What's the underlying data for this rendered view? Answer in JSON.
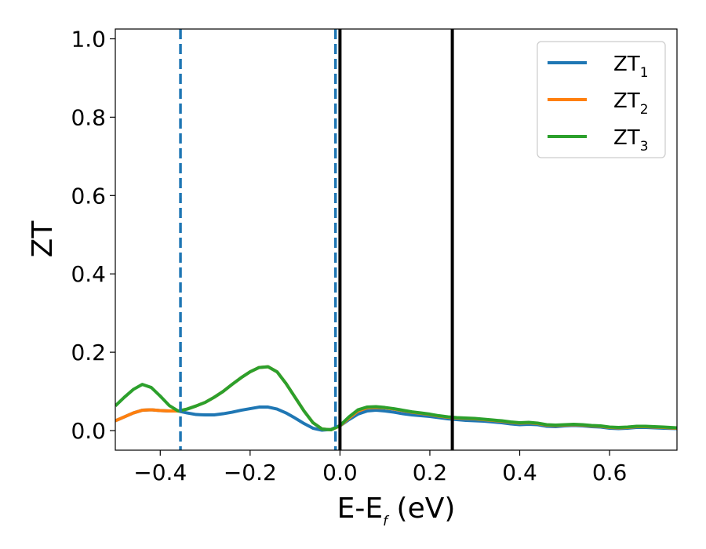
{
  "chart_data": {
    "type": "line",
    "title": "",
    "xlabel": {
      "main": "E-E",
      "sub": "f",
      "tail": " (eV)"
    },
    "ylabel": "ZT",
    "xlim": [
      -0.5,
      0.75
    ],
    "ylim": [
      -0.05,
      1.025
    ],
    "xticks": [
      -0.4,
      -0.2,
      0.0,
      0.2,
      0.4,
      0.6
    ],
    "xtick_labels": [
      "−0.4",
      "−0.2",
      "0.0",
      "0.2",
      "0.4",
      "0.6"
    ],
    "yticks": [
      0.0,
      0.2,
      0.4,
      0.6,
      0.8,
      1.0
    ],
    "ytick_labels": [
      "0.0",
      "0.2",
      "0.4",
      "0.6",
      "0.8",
      "1.0"
    ],
    "grid": false,
    "legend_position": "top-right",
    "vlines": [
      {
        "x": -0.355,
        "style": "dashed",
        "color": "#1f77b4"
      },
      {
        "x": -0.01,
        "style": "dashed",
        "color": "#1f77b4"
      },
      {
        "x": 0.0,
        "style": "solid",
        "color": "#000000"
      },
      {
        "x": 0.25,
        "style": "solid",
        "color": "#000000"
      }
    ],
    "x": [
      -0.5,
      -0.48,
      -0.46,
      -0.44,
      -0.42,
      -0.4,
      -0.38,
      -0.36,
      -0.34,
      -0.32,
      -0.3,
      -0.28,
      -0.26,
      -0.24,
      -0.22,
      -0.2,
      -0.18,
      -0.16,
      -0.14,
      -0.12,
      -0.1,
      -0.08,
      -0.06,
      -0.04,
      -0.02,
      0.0,
      0.02,
      0.04,
      0.06,
      0.08,
      0.1,
      0.12,
      0.14,
      0.16,
      0.18,
      0.2,
      0.22,
      0.24,
      0.26,
      0.28,
      0.3,
      0.32,
      0.34,
      0.36,
      0.38,
      0.4,
      0.42,
      0.44,
      0.46,
      0.48,
      0.5,
      0.52,
      0.54,
      0.56,
      0.58,
      0.6,
      0.62,
      0.64,
      0.66,
      0.68,
      0.7,
      0.72,
      0.75
    ],
    "series": [
      {
        "name_main": "ZT",
        "name_sub": "1",
        "color": "#1f77b4",
        "values": [
          0.025,
          0.035,
          0.045,
          0.052,
          0.053,
          0.051,
          0.05,
          0.05,
          0.045,
          0.041,
          0.04,
          0.04,
          0.043,
          0.047,
          0.052,
          0.056,
          0.06,
          0.06,
          0.055,
          0.045,
          0.032,
          0.018,
          0.006,
          0.001,
          0.003,
          0.012,
          0.028,
          0.042,
          0.05,
          0.052,
          0.05,
          0.047,
          0.043,
          0.04,
          0.038,
          0.036,
          0.033,
          0.03,
          0.028,
          0.026,
          0.025,
          0.024,
          0.022,
          0.02,
          0.017,
          0.015,
          0.016,
          0.015,
          0.011,
          0.01,
          0.012,
          0.013,
          0.012,
          0.01,
          0.009,
          0.006,
          0.005,
          0.006,
          0.008,
          0.008,
          0.007,
          0.006,
          0.005
        ]
      },
      {
        "name_main": "ZT",
        "name_sub": "2",
        "color": "#ff7f0e",
        "values": [
          0.025,
          0.035,
          0.045,
          0.052,
          0.053,
          0.051,
          0.05,
          0.05,
          0.055,
          0.063,
          0.072,
          0.085,
          0.1,
          0.118,
          0.135,
          0.15,
          0.161,
          0.163,
          0.15,
          0.12,
          0.085,
          0.05,
          0.02,
          0.004,
          0.002,
          0.012,
          0.032,
          0.05,
          0.058,
          0.059,
          0.058,
          0.055,
          0.051,
          0.047,
          0.044,
          0.041,
          0.037,
          0.034,
          0.032,
          0.031,
          0.03,
          0.028,
          0.026,
          0.024,
          0.021,
          0.019,
          0.02,
          0.018,
          0.014,
          0.013,
          0.014,
          0.015,
          0.014,
          0.012,
          0.011,
          0.008,
          0.007,
          0.008,
          0.01,
          0.01,
          0.009,
          0.008,
          0.006
        ]
      },
      {
        "name_main": "ZT",
        "name_sub": "3",
        "color": "#2ca02c",
        "values": [
          0.063,
          0.085,
          0.105,
          0.118,
          0.11,
          0.088,
          0.064,
          0.05,
          0.055,
          0.063,
          0.072,
          0.085,
          0.1,
          0.118,
          0.135,
          0.15,
          0.161,
          0.163,
          0.15,
          0.12,
          0.085,
          0.05,
          0.02,
          0.004,
          0.002,
          0.013,
          0.035,
          0.053,
          0.06,
          0.061,
          0.059,
          0.056,
          0.052,
          0.048,
          0.045,
          0.042,
          0.038,
          0.035,
          0.033,
          0.032,
          0.031,
          0.029,
          0.027,
          0.025,
          0.022,
          0.02,
          0.021,
          0.019,
          0.015,
          0.014,
          0.015,
          0.016,
          0.015,
          0.013,
          0.012,
          0.009,
          0.008,
          0.009,
          0.011,
          0.011,
          0.01,
          0.009,
          0.007
        ]
      }
    ]
  }
}
